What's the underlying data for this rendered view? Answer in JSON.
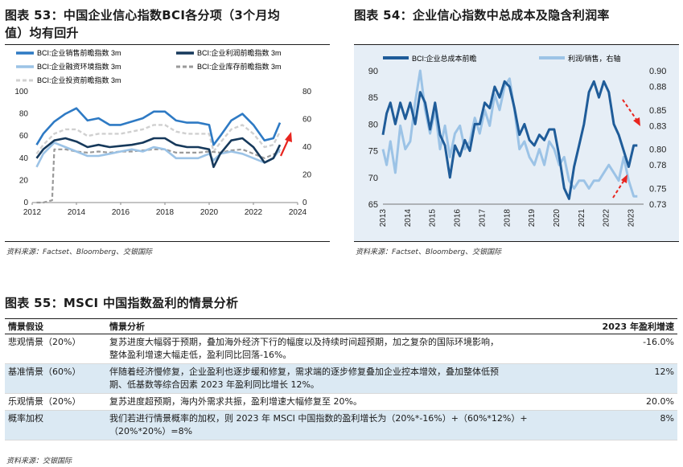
{
  "fig53": {
    "title_line1": "图表 53：中国企业信心指数BCI各分项（3个月均",
    "title_line2": "值）均有回升",
    "legend": [
      "BCI:企业销售前瞻指数 3m",
      "BCI:企业利润前瞻指数 3m",
      "BCI:企业融资环境指数 3m",
      "BCI:企业库存前瞻指数 3m",
      "BCI:企业投资前瞻指数 3m"
    ],
    "source": "资料来源：Factset、Bloomberg、交银国际",
    "colors": {
      "sales": "#2e7ac4",
      "profit": "#16395b",
      "financing": "#9cc3e6",
      "inventory": "#9a9a9a",
      "investment": "#d0d0d0",
      "arrow": "#e8251f"
    }
  },
  "fig54": {
    "title": "图表 54：企业信心指数中总成本及隐含利润率",
    "legend": [
      "BCI:企业总成本前瞻",
      "利润/销售，右轴"
    ],
    "source": "资料来源：Factset、Bloomberg、交银国际",
    "colors": {
      "cost": "#1f5c99",
      "margin": "#9cc3e6",
      "bg": "#e6eef6",
      "arrow": "#e8251f"
    }
  },
  "chart_data": [
    {
      "type": "line",
      "title": "中国企业信心指数BCI各分项（3个月均值）均有回升",
      "x_range": [
        2012,
        2024
      ],
      "x_ticks": [
        "2012",
        "2014",
        "2016",
        "2018",
        "2020",
        "2022",
        "2024"
      ],
      "ylim": [
        0,
        100
      ],
      "y_ticks": [
        "0",
        "20",
        "40",
        "60",
        "80",
        "100"
      ],
      "y2lim": [
        0,
        80
      ],
      "y2_ticks": [
        "0",
        "20",
        "40",
        "60",
        "80"
      ],
      "series": [
        {
          "name": "BCI:企业销售前瞻指数 3m",
          "x": [
            2012.2,
            2012.5,
            2013,
            2013.5,
            2014,
            2014.5,
            2015,
            2015.5,
            2016,
            2016.5,
            2017,
            2017.5,
            2018,
            2018.5,
            2019,
            2019.5,
            2020,
            2020.2,
            2020.5,
            2021,
            2021.5,
            2022,
            2022.5,
            2022.9,
            2023.2
          ],
          "values": [
            52,
            62,
            73,
            80,
            85,
            74,
            76,
            70,
            70,
            73,
            76,
            82,
            82,
            74,
            72,
            72,
            70,
            52,
            60,
            74,
            80,
            70,
            56,
            58,
            72
          ]
        },
        {
          "name": "BCI:企业利润前瞻指数 3m",
          "x": [
            2012.2,
            2012.5,
            2013,
            2013.5,
            2014,
            2014.5,
            2015,
            2015.5,
            2016,
            2016.5,
            2017,
            2017.5,
            2018,
            2018.5,
            2019,
            2019.5,
            2020,
            2020.2,
            2020.5,
            2021,
            2021.5,
            2022,
            2022.5,
            2022.9,
            2023.2
          ],
          "values": [
            40,
            48,
            56,
            58,
            55,
            50,
            52,
            50,
            51,
            52,
            54,
            58,
            58,
            52,
            50,
            50,
            48,
            32,
            44,
            56,
            58,
            50,
            36,
            40,
            52
          ]
        },
        {
          "name": "BCI:企业融资环境指数 3m",
          "x": [
            2012.2,
            2012.5,
            2013,
            2013.5,
            2014,
            2014.5,
            2015,
            2015.5,
            2016,
            2016.5,
            2017,
            2017.5,
            2018,
            2018.5,
            2019,
            2019.5,
            2020,
            2020.2,
            2020.5,
            2021,
            2021.5,
            2022,
            2022.5,
            2022.9,
            2023.2
          ],
          "values": [
            32,
            44,
            54,
            50,
            46,
            42,
            42,
            44,
            46,
            48,
            46,
            50,
            48,
            40,
            40,
            40,
            44,
            38,
            44,
            46,
            44,
            40,
            36,
            40,
            48
          ]
        },
        {
          "name": "BCI:企业库存前瞻指数 3m",
          "x": [
            2012.2,
            2012.5,
            2012.9,
            2013,
            2013.5,
            2014,
            2014.5,
            2015,
            2015.5,
            2016,
            2016.5,
            2017,
            2017.5,
            2018,
            2018.5,
            2019,
            2019.5,
            2020,
            2020.5,
            2021,
            2021.5,
            2022,
            2022.5,
            2023.2
          ],
          "values": [
            0,
            0,
            2,
            48,
            48,
            46,
            45,
            46,
            45,
            46,
            46,
            47,
            48,
            48,
            45,
            45,
            45,
            46,
            45,
            47,
            48,
            44,
            40,
            46
          ]
        },
        {
          "name": "BCI:企业投资前瞻指数 3m",
          "x": [
            2012.2,
            2012.5,
            2013,
            2013.5,
            2014,
            2014.5,
            2015,
            2015.5,
            2016,
            2016.5,
            2017,
            2017.5,
            2018,
            2018.5,
            2019,
            2019.5,
            2020,
            2020.2,
            2020.5,
            2021,
            2021.5,
            2022,
            2022.5,
            2022.9,
            2023.2
          ],
          "values": [
            44,
            52,
            62,
            66,
            66,
            60,
            62,
            62,
            62,
            64,
            66,
            70,
            70,
            64,
            62,
            62,
            62,
            46,
            54,
            66,
            70,
            62,
            50,
            52,
            64
          ]
        }
      ]
    },
    {
      "type": "line",
      "title": "企业信心指数中总成本及隐含利润率",
      "x_range": [
        2013,
        2023.5
      ],
      "x_ticks": [
        "2013",
        "2014",
        "2015",
        "2016",
        "2017",
        "2018",
        "2019",
        "2020",
        "2021",
        "2022",
        "2023"
      ],
      "ylim": [
        65,
        90
      ],
      "y_ticks": [
        "65",
        "70",
        "75",
        "80",
        "85",
        "90"
      ],
      "y2lim": [
        0.73,
        0.9
      ],
      "y2_ticks": [
        "0.73",
        "0.75",
        "0.78",
        "0.80",
        "0.83",
        "0.85",
        "0.88",
        "0.90"
      ],
      "series": [
        {
          "name": "BCI:企业总成本前瞻",
          "axis": "left",
          "x": [
            2013,
            2013.15,
            2013.3,
            2013.5,
            2013.7,
            2013.9,
            2014.1,
            2014.3,
            2014.5,
            2014.7,
            2014.9,
            2015.1,
            2015.3,
            2015.5,
            2015.7,
            2015.9,
            2016.1,
            2016.3,
            2016.5,
            2016.7,
            2016.9,
            2017.1,
            2017.3,
            2017.5,
            2017.7,
            2017.9,
            2018.1,
            2018.3,
            2018.5,
            2018.7,
            2018.9,
            2019.1,
            2019.3,
            2019.5,
            2019.7,
            2019.9,
            2020.1,
            2020.3,
            2020.5,
            2020.7,
            2020.9,
            2021.1,
            2021.3,
            2021.5,
            2021.7,
            2021.9,
            2022.1,
            2022.3,
            2022.5,
            2022.7,
            2022.9,
            2023.1,
            2023.25
          ],
          "values": [
            78,
            82,
            84,
            80,
            84,
            81,
            84,
            80,
            86,
            84,
            79,
            84,
            78,
            76,
            70,
            76,
            74,
            77,
            75,
            80,
            80,
            84,
            83,
            87,
            85,
            88,
            87,
            83,
            78,
            80,
            77,
            76,
            78,
            77,
            79,
            79,
            74,
            68,
            66,
            72,
            76,
            80,
            86,
            88,
            85,
            88,
            86,
            80,
            78,
            75,
            72,
            76,
            76
          ]
        },
        {
          "name": "利润/销售，右轴",
          "axis": "right",
          "x": [
            2013,
            2013.15,
            2013.3,
            2013.5,
            2013.7,
            2013.9,
            2014.1,
            2014.3,
            2014.5,
            2014.7,
            2014.9,
            2015.1,
            2015.3,
            2015.5,
            2015.7,
            2015.9,
            2016.1,
            2016.3,
            2016.5,
            2016.7,
            2016.9,
            2017.1,
            2017.3,
            2017.5,
            2017.7,
            2017.9,
            2018.1,
            2018.3,
            2018.5,
            2018.7,
            2018.9,
            2019.1,
            2019.3,
            2019.5,
            2019.7,
            2019.9,
            2020.1,
            2020.3,
            2020.5,
            2020.7,
            2020.9,
            2021.1,
            2021.3,
            2021.5,
            2021.7,
            2021.9,
            2022.1,
            2022.3,
            2022.5,
            2022.7,
            2022.9,
            2023.1,
            2023.25
          ],
          "values": [
            0.8,
            0.78,
            0.81,
            0.77,
            0.83,
            0.8,
            0.81,
            0.86,
            0.9,
            0.85,
            0.82,
            0.85,
            0.8,
            0.83,
            0.79,
            0.82,
            0.83,
            0.8,
            0.81,
            0.84,
            0.82,
            0.85,
            0.83,
            0.87,
            0.85,
            0.88,
            0.89,
            0.85,
            0.8,
            0.81,
            0.79,
            0.78,
            0.8,
            0.78,
            0.81,
            0.8,
            0.78,
            0.79,
            0.76,
            0.75,
            0.76,
            0.76,
            0.75,
            0.76,
            0.76,
            0.77,
            0.78,
            0.77,
            0.76,
            0.79,
            0.76,
            0.74,
            0.74
          ]
        }
      ]
    }
  ],
  "fig55": {
    "title": "图表 55：MSCI 中国指数盈利的情景分析",
    "headers": [
      "情景假设",
      "情景分析",
      "2023 年盈利增速"
    ],
    "rows": [
      {
        "scenario": "悲观情景（20%）",
        "lines": [
          "复苏进度大幅弱于预期，叠加海外经济下行的幅度以及持续时间超预期，加之复杂的国际环境影响，",
          "整体盈利增速大幅走低，盈利同比回落-16%。"
        ],
        "growth": "-16.0%"
      },
      {
        "scenario": "基准情景（60%）",
        "lines": [
          "伴随着经济慢修复，企业盈利也逐步缓和修复，需求端的逐步修复叠加企业控本增效，叠加整体低预",
          "期、低基数等综合因素 2023 年盈利同比增长 12%。"
        ],
        "growth": "12%"
      },
      {
        "scenario": "乐观情景（20%）",
        "lines": [
          "复苏进度超预期，海内外需求共振，盈利增速大幅修复至 20%。"
        ],
        "growth": "20.0%"
      },
      {
        "scenario": "概率加权",
        "lines": [
          "我们若进行情景概率的加权，则 2023 年 MSCI 中国指数的盈利增长为（20%*-16%）+（60%*12%）+",
          "（20%*20%）=8%"
        ],
        "growth": "8%"
      }
    ],
    "source": "资料来源：交银国际"
  }
}
